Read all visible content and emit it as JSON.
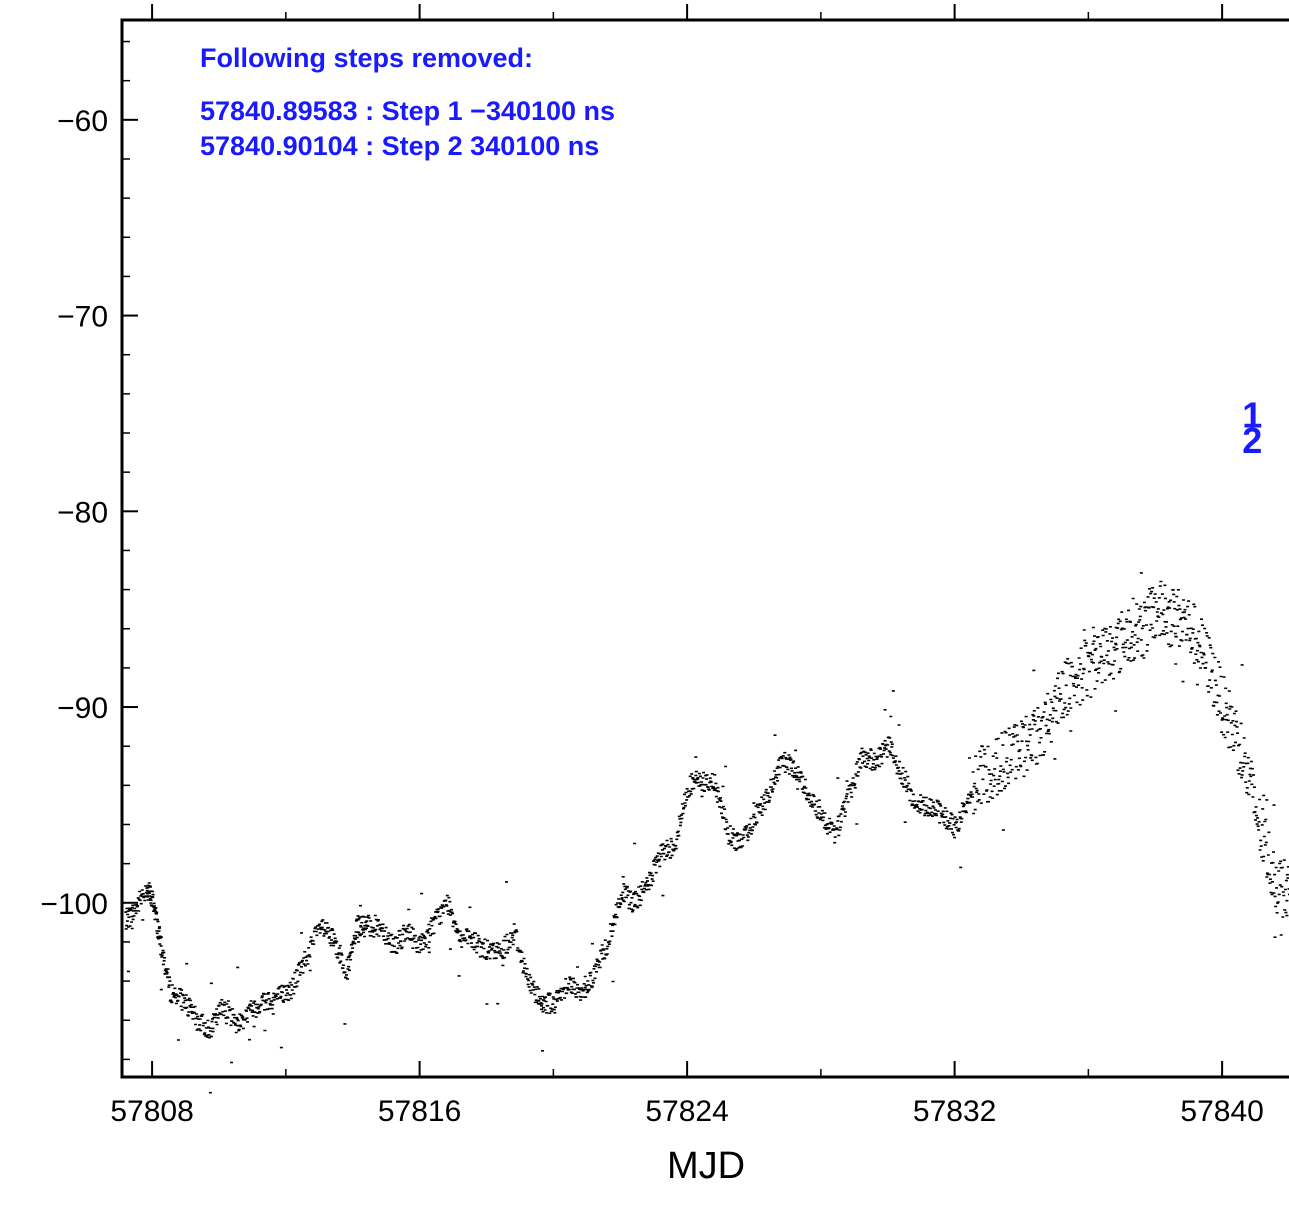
{
  "chart_data": {
    "type": "scatter",
    "xlabel": "MJD",
    "ylabel": "",
    "xlim": [
      57807.1,
      57842.0
    ],
    "ylim": [
      -108.9,
      -54.9
    ],
    "x_ticks": [
      57808,
      57816,
      57824,
      57832,
      57840
    ],
    "x_tick_labels": [
      "57808",
      "57816",
      "57824",
      "57832",
      "57840"
    ],
    "x_minor_ticks": [
      57812,
      57820,
      57828,
      57836
    ],
    "y_ticks": [
      -60,
      -70,
      -80,
      -90,
      -100
    ],
    "y_tick_labels": [
      "−60",
      "−70",
      "−80",
      "−90",
      "−100"
    ],
    "grid": false,
    "annotation": {
      "title": "Following steps removed:",
      "lines": [
        "57840.89583 : Step 1 −340100 ns",
        "57840.90104 : Step 2 340100 ns"
      ],
      "color": "#1a1aff"
    },
    "step_markers": [
      {
        "label": "1",
        "x": 57840.9,
        "y": -75.1
      },
      {
        "label": "2",
        "x": 57840.9,
        "y": -76.4
      }
    ],
    "series": [
      {
        "color": "#000000",
        "x": [
          57807.1,
          57807.4,
          57807.8,
          57808.0,
          57808.2,
          57808.5,
          57808.9,
          57809.3,
          57809.7,
          57810.1,
          57810.5,
          57810.9,
          57811.3,
          57811.7,
          57812.1,
          57812.5,
          57813.0,
          57813.4,
          57813.8,
          57814.1,
          57814.4,
          57814.8,
          57815.2,
          57815.6,
          57816.0,
          57816.4,
          57816.8,
          57817.2,
          57817.6,
          57818.0,
          57818.4,
          57818.8,
          57819.2,
          57819.6,
          57820.0,
          57820.4,
          57820.8,
          57821.2,
          57821.6,
          57822.0,
          57822.4,
          57822.8,
          57823.2,
          57823.6,
          57824.0,
          57824.4,
          57824.8,
          57825.2,
          57825.6,
          57826.0,
          57826.4,
          57826.8,
          57827.2,
          57827.6,
          57828.0,
          57828.4,
          57828.8,
          57829.2,
          57829.6,
          57830.0,
          57830.4,
          57830.8,
          57831.2,
          57831.6,
          57832.0,
          57832.4,
          57832.8,
          57833.2,
          57833.6,
          57834.0,
          57834.4,
          57834.8,
          57835.2,
          57835.6,
          57836.0,
          57836.4,
          57836.8,
          57837.2,
          57837.6,
          57838.0,
          57838.4,
          57838.8,
          57839.2,
          57839.6,
          57840.0,
          57840.4,
          57840.8,
          57841.2,
          57841.6,
          57842.0
        ],
        "y": [
          -101.0,
          -100.5,
          -99.2,
          -100.0,
          -102.0,
          -104.5,
          -105.0,
          -106.0,
          -106.5,
          -105.2,
          -106.2,
          -105.5,
          -105.0,
          -104.8,
          -104.5,
          -103.0,
          -101.2,
          -102.0,
          -103.5,
          -101.2,
          -101.2,
          -101.2,
          -102.2,
          -101.5,
          -102.2,
          -101.0,
          -100.0,
          -101.8,
          -102.0,
          -102.5,
          -102.5,
          -101.5,
          -104.0,
          -105.0,
          -105.2,
          -104.0,
          -104.8,
          -103.5,
          -102.0,
          -99.5,
          -100.0,
          -99.0,
          -97.5,
          -97.0,
          -94.0,
          -93.8,
          -94.0,
          -96.5,
          -97.0,
          -95.5,
          -94.5,
          -92.8,
          -93.2,
          -94.5,
          -95.5,
          -96.5,
          -94.5,
          -92.5,
          -92.8,
          -92.0,
          -93.5,
          -95.0,
          -95.0,
          -95.5,
          -96.2,
          -94.5,
          -93.5,
          -93.0,
          -92.5,
          -92.0,
          -91.5,
          -90.5,
          -89.0,
          -88.5,
          -88.0,
          -87.2,
          -87.0,
          -86.0,
          -86.0,
          -85.0,
          -85.4,
          -85.5,
          -86.5,
          -88.0,
          -90.0,
          -91.5,
          -94.0,
          -97.0,
          -99.0,
          -99.5
        ]
      }
    ]
  }
}
